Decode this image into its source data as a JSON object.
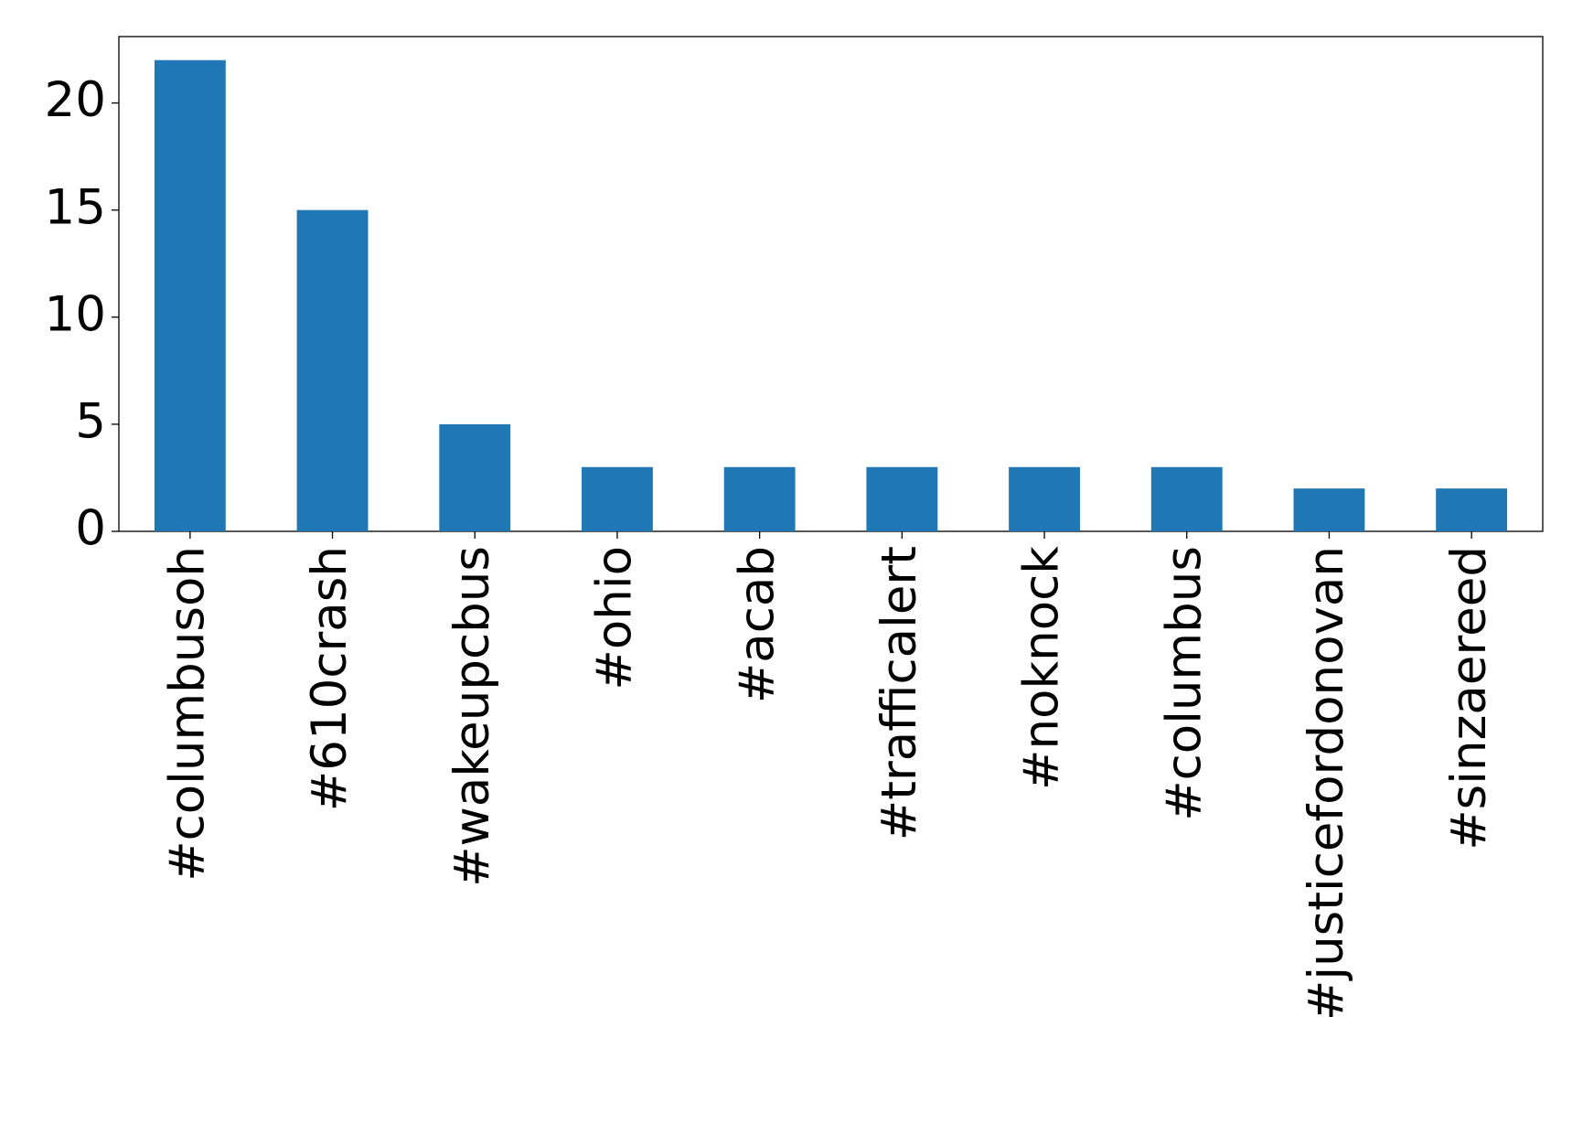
{
  "chart_data": {
    "type": "bar",
    "categories": [
      "#columbusoh",
      "#610crash",
      "#wakeupcbus",
      "#ohio",
      "#acab",
      "#trafficalert",
      "#noknock",
      "#columbus",
      "#justicefordonovan",
      "#sinzaereed"
    ],
    "values": [
      22,
      15,
      5,
      3,
      3,
      3,
      3,
      3,
      2,
      2
    ],
    "color": "#1f77b4",
    "ylim": [
      0,
      23.1
    ],
    "yticks": [
      0,
      5,
      10,
      15,
      20
    ],
    "grid": false
  }
}
